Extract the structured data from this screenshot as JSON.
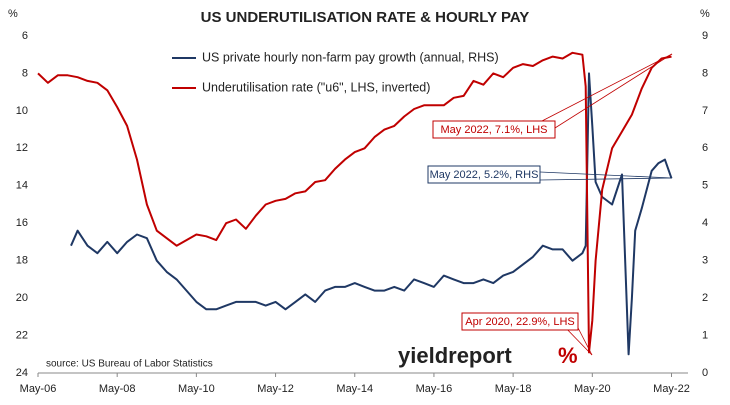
{
  "chart_data": {
    "type": "line",
    "title": "US UNDERUTILISATION RATE & HOURLY PAY",
    "ylabel": "%",
    "y2label": "%",
    "source": "source: US Bureau of Labor Statistics",
    "logo": {
      "text": "yieldreport",
      "mark": "%"
    },
    "annotations": [
      "May 2022, 7.1%, LHS",
      "May 2022, 5.2%, RHS",
      "Apr 2020, 22.9%, LHS"
    ],
    "xlim": [
      "2006-05",
      "2022-10"
    ],
    "xticks": [
      {
        "value": "2006-05",
        "label": "May-06"
      },
      {
        "value": "2008-05",
        "label": "May-08"
      },
      {
        "value": "2010-05",
        "label": "May-10"
      },
      {
        "value": "2012-05",
        "label": "May-12"
      },
      {
        "value": "2014-05",
        "label": "May-14"
      },
      {
        "value": "2016-05",
        "label": "May-16"
      },
      {
        "value": "2018-05",
        "label": "May-18"
      },
      {
        "value": "2020-05",
        "label": "May-20"
      },
      {
        "value": "2022-05",
        "label": "May-22"
      }
    ],
    "ylim": [
      24,
      6
    ],
    "yticks": [
      6,
      8,
      10,
      12,
      14,
      16,
      18,
      20,
      22,
      24
    ],
    "y_inverted": true,
    "y2lim": [
      0,
      9
    ],
    "y2ticks": [
      0,
      1,
      2,
      3,
      4,
      5,
      6,
      7,
      8,
      9
    ],
    "grid": false,
    "legend": "top",
    "series": [
      {
        "name": "US private hourly non-farm pay growth (annual, RHS)",
        "color": "#1f3864",
        "axis": "y2",
        "x": [
          "2007-03",
          "2007-05",
          "2007-08",
          "2007-11",
          "2008-02",
          "2008-05",
          "2008-08",
          "2008-11",
          "2009-02",
          "2009-05",
          "2009-08",
          "2009-11",
          "2010-02",
          "2010-05",
          "2010-08",
          "2010-11",
          "2011-02",
          "2011-05",
          "2011-08",
          "2011-11",
          "2012-02",
          "2012-05",
          "2012-08",
          "2012-11",
          "2013-02",
          "2013-05",
          "2013-08",
          "2013-11",
          "2014-02",
          "2014-05",
          "2014-08",
          "2014-11",
          "2015-02",
          "2015-05",
          "2015-08",
          "2015-11",
          "2016-02",
          "2016-05",
          "2016-08",
          "2016-11",
          "2017-02",
          "2017-05",
          "2017-08",
          "2017-11",
          "2018-02",
          "2018-05",
          "2018-08",
          "2018-11",
          "2019-02",
          "2019-05",
          "2019-08",
          "2019-11",
          "2020-02",
          "2020-03",
          "2020-04",
          "2020-05",
          "2020-06",
          "2020-08",
          "2020-11",
          "2021-02",
          "2021-04",
          "2021-05",
          "2021-06",
          "2021-08",
          "2021-11",
          "2022-01",
          "2022-03",
          "2022-05"
        ],
        "values": [
          3.4,
          3.8,
          3.4,
          3.2,
          3.5,
          3.2,
          3.5,
          3.7,
          3.6,
          3.0,
          2.7,
          2.5,
          2.2,
          1.9,
          1.7,
          1.7,
          1.8,
          1.9,
          1.9,
          1.9,
          1.8,
          1.9,
          1.7,
          1.9,
          2.1,
          1.9,
          2.2,
          2.3,
          2.3,
          2.4,
          2.3,
          2.2,
          2.2,
          2.3,
          2.2,
          2.5,
          2.4,
          2.3,
          2.6,
          2.5,
          2.4,
          2.4,
          2.5,
          2.4,
          2.6,
          2.7,
          2.9,
          3.1,
          3.4,
          3.3,
          3.3,
          3.0,
          3.2,
          3.4,
          8.0,
          6.6,
          5.1,
          4.7,
          4.5,
          5.3,
          0.5,
          2.0,
          3.8,
          4.4,
          5.4,
          5.6,
          5.7,
          5.2
        ]
      },
      {
        "name": "Underutilisation rate (\"u6\", LHS, inverted)",
        "color": "#c00000",
        "axis": "y",
        "x": [
          "2006-05",
          "2006-08",
          "2006-11",
          "2007-02",
          "2007-05",
          "2007-08",
          "2007-11",
          "2008-02",
          "2008-05",
          "2008-08",
          "2008-11",
          "2009-02",
          "2009-05",
          "2009-08",
          "2009-11",
          "2010-02",
          "2010-05",
          "2010-08",
          "2010-11",
          "2011-02",
          "2011-05",
          "2011-08",
          "2011-11",
          "2012-02",
          "2012-05",
          "2012-08",
          "2012-11",
          "2013-02",
          "2013-05",
          "2013-08",
          "2013-11",
          "2014-02",
          "2014-05",
          "2014-08",
          "2014-11",
          "2015-02",
          "2015-05",
          "2015-08",
          "2015-11",
          "2016-02",
          "2016-05",
          "2016-08",
          "2016-11",
          "2017-02",
          "2017-05",
          "2017-08",
          "2017-11",
          "2018-02",
          "2018-05",
          "2018-08",
          "2018-11",
          "2019-02",
          "2019-05",
          "2019-08",
          "2019-11",
          "2020-02",
          "2020-03",
          "2020-04",
          "2020-05",
          "2020-06",
          "2020-08",
          "2020-11",
          "2021-02",
          "2021-05",
          "2021-08",
          "2021-11",
          "2022-02",
          "2022-05"
        ],
        "values": [
          8.0,
          8.5,
          8.1,
          8.1,
          8.2,
          8.4,
          8.5,
          8.9,
          9.8,
          10.8,
          12.6,
          15.0,
          16.4,
          16.8,
          17.2,
          16.9,
          16.6,
          16.7,
          16.9,
          16.0,
          15.8,
          16.3,
          15.6,
          15.0,
          14.8,
          14.7,
          14.4,
          14.3,
          13.8,
          13.7,
          13.1,
          12.6,
          12.2,
          12.0,
          11.4,
          11.0,
          10.8,
          10.3,
          9.9,
          9.7,
          9.7,
          9.7,
          9.3,
          9.2,
          8.4,
          8.6,
          8.0,
          8.2,
          7.7,
          7.5,
          7.6,
          7.3,
          7.1,
          7.2,
          6.9,
          7.0,
          8.7,
          22.9,
          21.2,
          18.0,
          14.2,
          12.0,
          11.1,
          10.2,
          8.8,
          7.7,
          7.2,
          7.1
        ]
      }
    ]
  }
}
